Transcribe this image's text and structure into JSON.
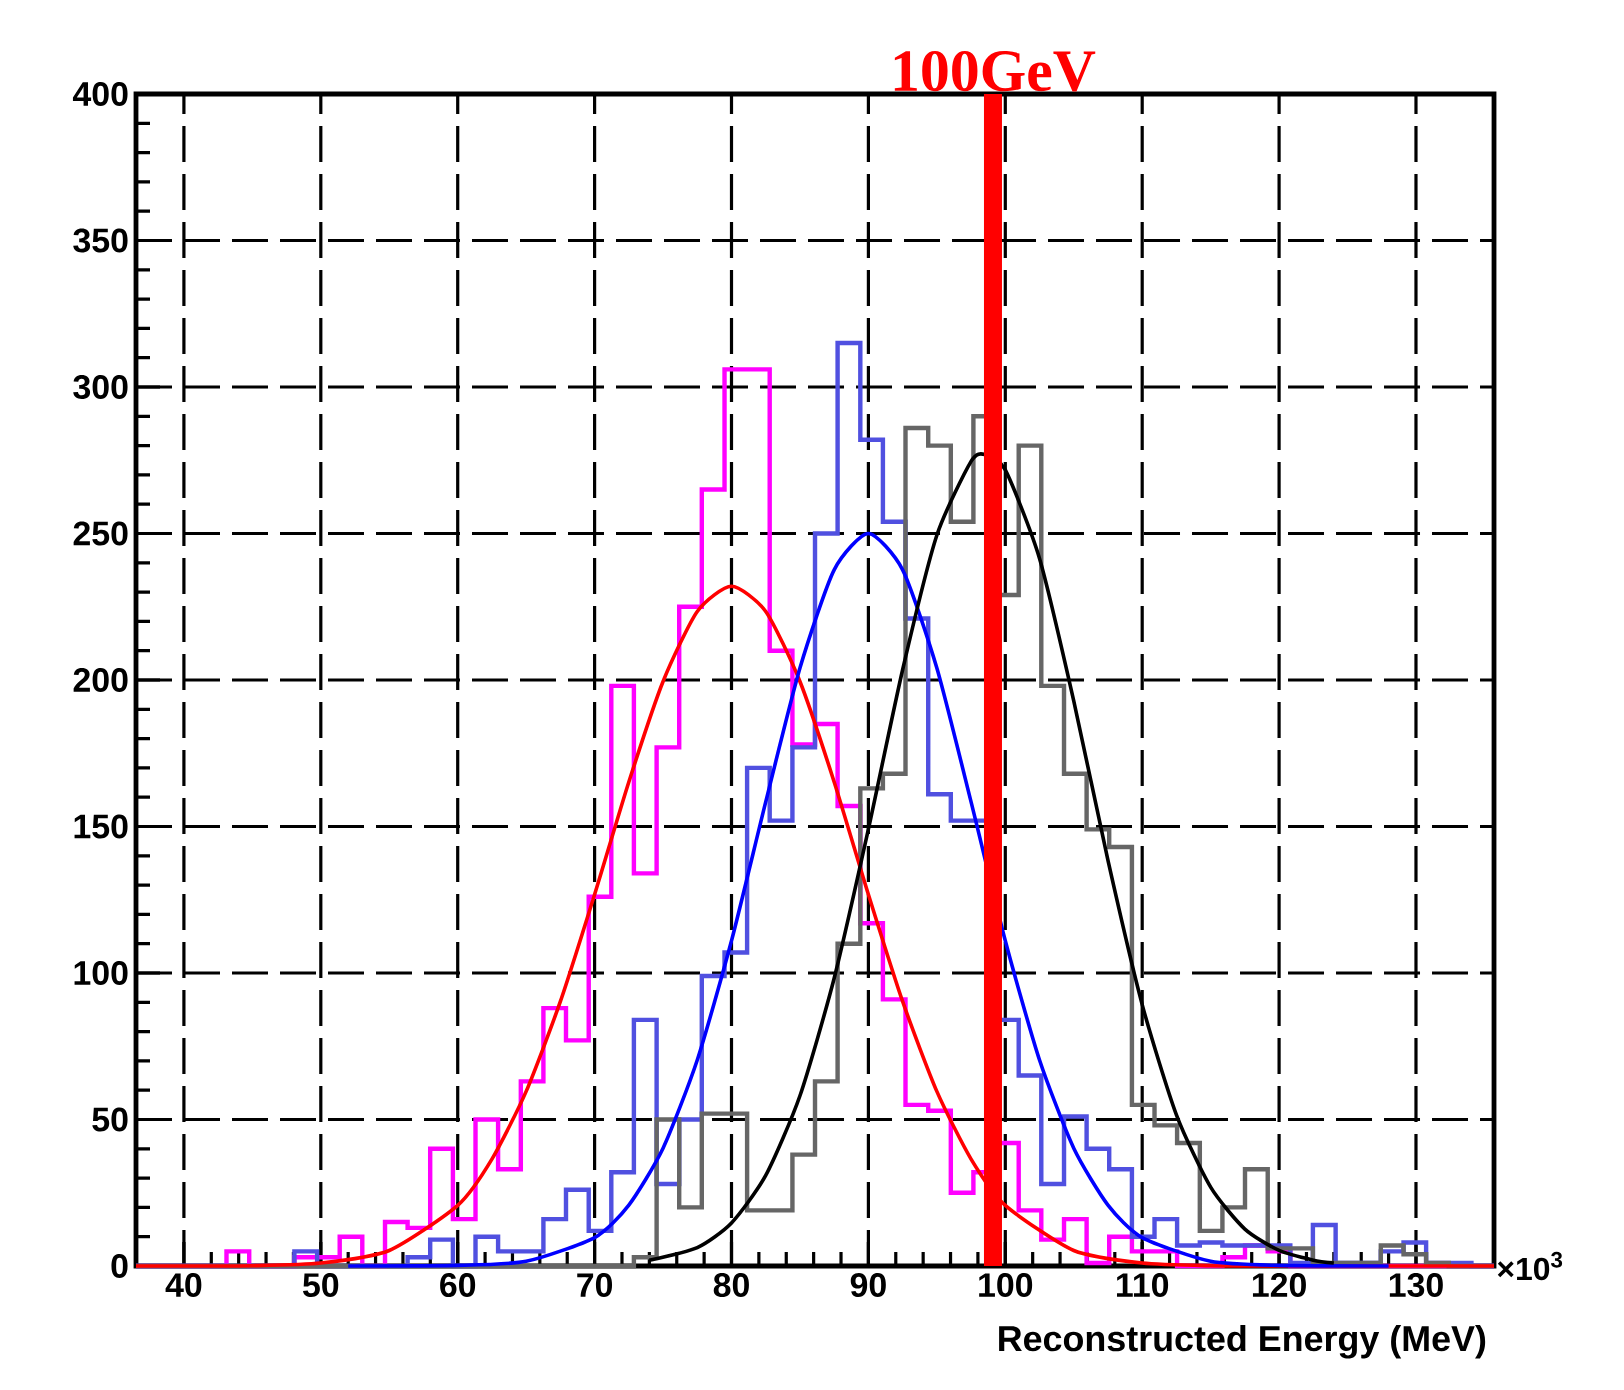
{
  "chart_data": {
    "type": "histogram",
    "xlabel": "Reconstructed Energy (MeV)",
    "annotations": [
      "×10$^{3}$"
    ],
    "xlim": [
      36.5,
      135.7
    ],
    "ylim": [
      0,
      400
    ],
    "xticks": [
      40,
      50,
      60,
      70,
      80,
      90,
      100,
      110,
      120,
      130
    ],
    "yticks": [
      0,
      50,
      100,
      150,
      200,
      250,
      300,
      350,
      400
    ],
    "grid": true,
    "bins": [
      36.5,
      38.15,
      39.81,
      41.46,
      43.11,
      44.77,
      46.42,
      48.07,
      49.73,
      51.38,
      53.03,
      54.69,
      56.34,
      57.99,
      59.65,
      61.3,
      62.95,
      64.61,
      66.26,
      67.91,
      69.57,
      71.22,
      72.87,
      74.53,
      76.18,
      77.83,
      79.49,
      81.14,
      82.79,
      84.45,
      86.1,
      87.75,
      89.41,
      91.06,
      92.71,
      94.37,
      96.02,
      97.67,
      99.33,
      100.98,
      102.63,
      104.29,
      105.94,
      107.59,
      109.25,
      110.9,
      112.55,
      114.21,
      115.86,
      117.51,
      119.17,
      120.82,
      122.47,
      124.13,
      125.78,
      127.43,
      129.09,
      130.74,
      132.39,
      134.05,
      135.7
    ],
    "series": [
      {
        "color": "#ff00ff",
        "values": [
          0,
          0,
          0,
          0,
          5,
          0,
          0,
          3,
          3,
          10,
          0,
          15,
          13,
          40,
          16,
          50,
          33,
          63,
          88,
          77,
          126,
          198,
          134,
          177,
          225,
          265,
          306,
          306,
          210,
          178,
          185,
          157,
          117,
          91,
          55,
          53,
          25,
          32,
          42,
          19,
          9,
          16,
          1,
          10,
          5,
          5,
          0,
          0,
          3,
          7,
          5,
          0,
          0,
          0,
          0,
          0,
          0,
          0,
          0,
          0
        ]
      },
      {
        "color": "#5050e0",
        "values": [
          0,
          0,
          0,
          0,
          0,
          0,
          0,
          5,
          0,
          0,
          0,
          0,
          3,
          9,
          0,
          10,
          5,
          5,
          16,
          26,
          12,
          32,
          84,
          28,
          50,
          99,
          107,
          170,
          152,
          177,
          250,
          315,
          282,
          254,
          221,
          161,
          152,
          152,
          84,
          65,
          28,
          51,
          40,
          33,
          10,
          16,
          7,
          8,
          7,
          7,
          7,
          1,
          14,
          1,
          1,
          5,
          8,
          1,
          1,
          0
        ]
      },
      {
        "color": "#666666",
        "values": [
          0,
          0,
          0,
          0,
          0,
          0,
          0,
          0,
          0,
          0,
          0,
          0,
          0,
          0,
          0,
          0,
          0,
          0,
          0,
          0,
          0,
          0,
          3,
          50,
          20,
          52,
          52,
          19,
          19,
          38,
          63,
          110,
          163,
          168,
          286,
          280,
          254,
          290,
          229,
          280,
          198,
          168,
          149,
          143,
          55,
          48,
          42,
          12,
          20,
          33,
          6,
          6,
          1,
          1,
          1,
          7,
          4,
          1,
          0,
          0
        ]
      },
      {
        "type": "line",
        "color": "#ff0000",
        "x": [
          36.5,
          40,
          45,
          50,
          55,
          60,
          62.5,
          65,
          67.5,
          70,
          72.5,
          75,
          77.5,
          80,
          82.5,
          85,
          87.5,
          90,
          92.5,
          95,
          97.5,
          100,
          105,
          110,
          115,
          120,
          135.7
        ],
        "values": [
          0,
          0,
          0.1,
          1,
          5.3,
          20.7,
          36.5,
          59.6,
          90.3,
          126.8,
          165.2,
          199.5,
          223.4,
          232,
          223.4,
          199.5,
          165.2,
          126.8,
          90.3,
          59.6,
          36.5,
          20.7,
          5.3,
          1,
          0.1,
          0,
          0
        ]
      },
      {
        "type": "line",
        "color": "#0000ff",
        "x": [
          52,
          60,
          65,
          70,
          72.5,
          75,
          77.5,
          80,
          82.5,
          85,
          87.5,
          90,
          92.5,
          95,
          97.5,
          100,
          102.5,
          105,
          107.5,
          110,
          115,
          120,
          128
        ],
        "values": [
          0,
          0.2,
          1.6,
          9.7,
          20.8,
          40.2,
          70.3,
          111,
          158.4,
          204.1,
          237.6,
          250,
          237.6,
          204.1,
          158.4,
          111,
          70.3,
          40.2,
          20.8,
          9.7,
          1.6,
          0.2,
          0
        ]
      },
      {
        "type": "line",
        "color": "#000000",
        "x": [
          74,
          77.5,
          80,
          82.5,
          85,
          87.5,
          90,
          92.5,
          95,
          97.5,
          98.5,
          100,
          102.5,
          105,
          107.5,
          110,
          112.5,
          115,
          117.5,
          120,
          122.5,
          124
        ],
        "values": [
          2,
          6.3,
          14.7,
          30.9,
          58.1,
          98.2,
          149.1,
          203.5,
          249.4,
          274.6,
          277,
          271.7,
          241.5,
          192.9,
          138.4,
          89.2,
          51.6,
          26.9,
          12.6,
          5.3,
          2,
          1
        ]
      }
    ],
    "ref_lines": [
      {
        "axis": "x",
        "value": 99.1,
        "label": "100GeV",
        "color": "#ff0000"
      }
    ]
  }
}
